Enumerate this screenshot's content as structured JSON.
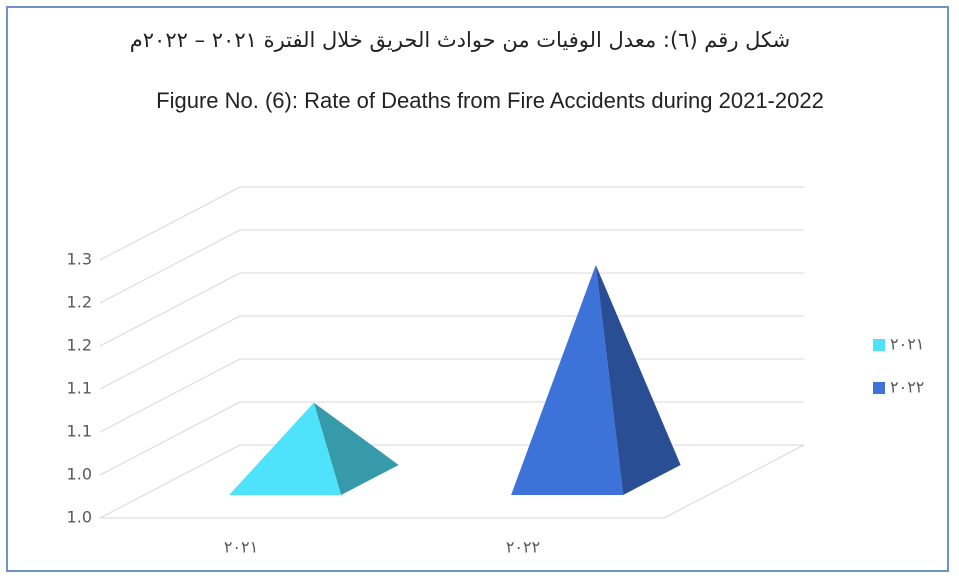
{
  "chart_data": {
    "type": "pyramid3d",
    "title_ar": "شكل رقم (٦): معدل الوفيات من حوادث الحريق خلال الفترة ٢٠٢١ – ٢٠٢٢م",
    "title": "Figure No. (6): Rate of Deaths from Fire Accidents during 2021-2022",
    "categories": [
      "٢٠٢١",
      "٢٠٢٢"
    ],
    "series": [
      {
        "name": "٢٠٢١",
        "color": "#4fe3fb",
        "values": [
          1.04,
          null
        ]
      },
      {
        "name": "٢٠٢٢",
        "color": "#3d72d8",
        "values": [
          null,
          1.2
        ]
      }
    ],
    "ylim": [
      0.95,
      1.25
    ],
    "yticks": [
      {
        "value": 0.95,
        "label": "1.0"
      },
      {
        "value": 1.0,
        "label": "1.0"
      },
      {
        "value": 1.05,
        "label": "1.1"
      },
      {
        "value": 1.1,
        "label": "1.1"
      },
      {
        "value": 1.15,
        "label": "1.2"
      },
      {
        "value": 1.2,
        "label": "1.2"
      },
      {
        "value": 1.25,
        "label": "1.3"
      }
    ],
    "grid": true,
    "legend": "right"
  }
}
